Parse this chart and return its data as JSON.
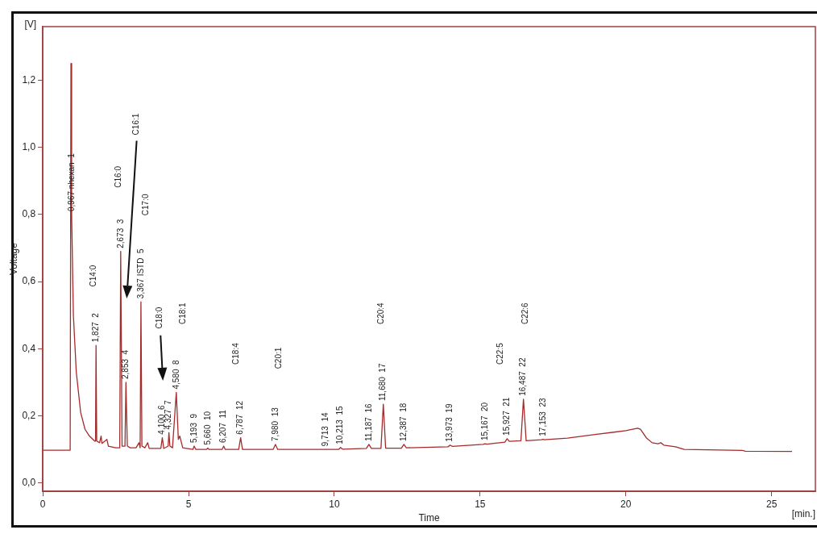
{
  "chart_data": {
    "type": "line",
    "xlabel": "Time",
    "ylabel": "Voltage",
    "xlim": [
      0,
      26.5
    ],
    "ylim": [
      -0.025,
      1.36
    ],
    "xticks": [
      0,
      5,
      10,
      15,
      20,
      25
    ],
    "yticks": [
      {
        "value": 0,
        "label": "0,0"
      },
      {
        "value": 0.2,
        "label": "0,2"
      },
      {
        "value": 0.4,
        "label": "0,4"
      },
      {
        "value": 0.6,
        "label": "0,6"
      },
      {
        "value": 0.8,
        "label": "0,8"
      },
      {
        "value": 1.0,
        "label": "1,0"
      },
      {
        "value": 1.2,
        "label": "1,2"
      }
    ],
    "grid": false,
    "legend": false,
    "marker": "none",
    "line_style": "solid",
    "series": [
      {
        "color": "#a52a2a",
        "x": [
          0,
          0.94,
          0.967,
          0.99,
          1.05,
          1.15,
          1.3,
          1.45,
          1.6,
          1.78,
          1.81,
          1.827,
          1.85,
          1.95,
          2.0,
          2.03,
          2.2,
          2.25,
          2.5,
          2.64,
          2.673,
          2.72,
          2.82,
          2.853,
          2.9,
          3.0,
          3.2,
          3.3,
          3.34,
          3.367,
          3.4,
          3.5,
          3.6,
          3.65,
          4.05,
          4.1,
          4.15,
          4.3,
          4.327,
          4.36,
          4.45,
          4.58,
          4.65,
          4.7,
          4.8,
          5.15,
          5.193,
          5.25,
          5.62,
          5.66,
          5.7,
          6.15,
          6.207,
          6.26,
          6.72,
          6.787,
          6.85,
          7.9,
          7.98,
          8.06,
          9.3,
          9.713,
          10.15,
          10.213,
          10.28,
          11.1,
          11.187,
          11.27,
          11.6,
          11.68,
          11.76,
          12.3,
          12.387,
          12.47,
          13.9,
          13.973,
          14.05,
          15.1,
          15.167,
          15.23,
          15.85,
          15.927,
          16.0,
          16.4,
          16.487,
          16.58,
          17.1,
          17.153,
          17.2,
          18,
          19,
          20,
          20.4,
          20.5,
          20.7,
          20.9,
          21.1,
          21.2,
          21.3,
          21.7,
          22,
          24,
          24.1,
          25.7
        ],
        "values": [
          0.098,
          0.098,
          1.25,
          0.8,
          0.5,
          0.33,
          0.21,
          0.16,
          0.14,
          0.125,
          0.125,
          0.41,
          0.125,
          0.12,
          0.14,
          0.118,
          0.13,
          0.11,
          0.105,
          0.105,
          0.69,
          0.11,
          0.11,
          0.3,
          0.11,
          0.105,
          0.105,
          0.12,
          0.105,
          0.54,
          0.11,
          0.105,
          0.12,
          0.103,
          0.103,
          0.135,
          0.103,
          0.11,
          0.15,
          0.11,
          0.105,
          0.27,
          0.13,
          0.14,
          0.105,
          0.1,
          0.11,
          0.1,
          0.1,
          0.104,
          0.1,
          0.1,
          0.11,
          0.1,
          0.1,
          0.135,
          0.1,
          0.1,
          0.115,
          0.1,
          0.1,
          0.1,
          0.1,
          0.106,
          0.101,
          0.103,
          0.115,
          0.103,
          0.103,
          0.235,
          0.104,
          0.104,
          0.115,
          0.105,
          0.108,
          0.113,
          0.109,
          0.115,
          0.117,
          0.116,
          0.122,
          0.132,
          0.124,
          0.126,
          0.25,
          0.126,
          0.129,
          0.13,
          0.129,
          0.134,
          0.145,
          0.156,
          0.163,
          0.16,
          0.135,
          0.12,
          0.117,
          0.12,
          0.113,
          0.108,
          0.1,
          0.097,
          0.095,
          0.094
        ]
      }
    ],
    "annotations": [
      "[V]",
      "[min.]",
      "C14:0",
      "C16:0",
      "C16:1",
      "C17:0",
      "C18:0",
      "C18:1",
      "C18:4",
      "C20:1",
      "C20:4",
      "C22:5",
      "C22:6",
      {
        "text": "0,967 nhexan  1",
        "x": 0.99,
        "y": 0.8
      },
      {
        "text": "1,827  2",
        "x": 1.827,
        "y": 0.41
      },
      {
        "text": "2,673  3",
        "x": 2.673,
        "y": 0.69
      },
      {
        "text": "2,853  4",
        "x": 2.853,
        "y": 0.3
      },
      {
        "text": "3,367 ISTD  5",
        "x": 3.367,
        "y": 0.54
      },
      {
        "text": "4,100  6",
        "x": 4.1,
        "y": 0.135
      },
      {
        "text": "4,327  7",
        "x": 4.327,
        "y": 0.15
      },
      {
        "text": "4,580  8",
        "x": 4.58,
        "y": 0.27
      },
      {
        "text": "5,193  9",
        "x": 5.193,
        "y": 0.11
      },
      {
        "text": "5,660  10",
        "x": 5.66,
        "y": 0.104
      },
      {
        "text": "6,207  11",
        "x": 6.207,
        "y": 0.11
      },
      {
        "text": "6,787  12",
        "x": 6.787,
        "y": 0.135
      },
      {
        "text": "7,980  13",
        "x": 7.98,
        "y": 0.115
      },
      {
        "text": "9,713  14",
        "x": 9.713,
        "y": 0.1
      },
      {
        "text": "10,213  15",
        "x": 10.213,
        "y": 0.106
      },
      {
        "text": "11,187  16",
        "x": 11.187,
        "y": 0.115
      },
      {
        "text": "11,680  17",
        "x": 11.68,
        "y": 0.235
      },
      {
        "text": "12,387  18",
        "x": 12.387,
        "y": 0.115
      },
      {
        "text": "13,973  19",
        "x": 13.973,
        "y": 0.113
      },
      {
        "text": "15,167  20",
        "x": 15.167,
        "y": 0.117
      },
      {
        "text": "15,927  21",
        "x": 15.927,
        "y": 0.132
      },
      {
        "text": "16,487  22",
        "x": 16.487,
        "y": 0.25
      },
      {
        "text": "17,153  23",
        "x": 17.153,
        "y": 0.13
      }
    ]
  }
}
